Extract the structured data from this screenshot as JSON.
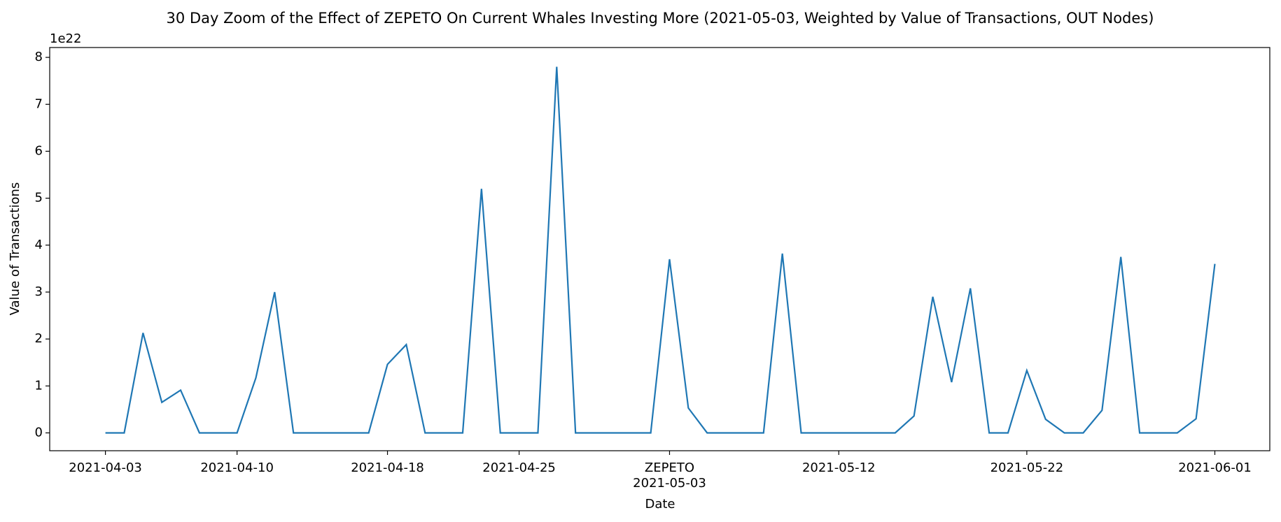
{
  "chart_data": {
    "type": "line",
    "title": "30 Day Zoom of the Effect of ZEPETO On Current Whales Investing More (2021-05-03, Weighted by Value of Transactions, OUT Nodes)",
    "xlabel": "Date",
    "ylabel": "Value of Transactions",
    "y_offset_label": "1e22",
    "annotation": {
      "text": "ZEPETO",
      "x": "2021-05-03"
    },
    "x": [
      "2021-04-03",
      "2021-04-04",
      "2021-04-05",
      "2021-04-06",
      "2021-04-07",
      "2021-04-08",
      "2021-04-09",
      "2021-04-10",
      "2021-04-11",
      "2021-04-12",
      "2021-04-13",
      "2021-04-14",
      "2021-04-15",
      "2021-04-16",
      "2021-04-17",
      "2021-04-18",
      "2021-04-19",
      "2021-04-20",
      "2021-04-21",
      "2021-04-22",
      "2021-04-23",
      "2021-04-24",
      "2021-04-25",
      "2021-04-26",
      "2021-04-27",
      "2021-04-28",
      "2021-04-29",
      "2021-04-30",
      "2021-05-01",
      "2021-05-02",
      "2021-05-03",
      "2021-05-04",
      "2021-05-05",
      "2021-05-06",
      "2021-05-07",
      "2021-05-08",
      "2021-05-09",
      "2021-05-10",
      "2021-05-11",
      "2021-05-12",
      "2021-05-13",
      "2021-05-14",
      "2021-05-15",
      "2021-05-16",
      "2021-05-17",
      "2021-05-18",
      "2021-05-19",
      "2021-05-20",
      "2021-05-21",
      "2021-05-22",
      "2021-05-23",
      "2021-05-24",
      "2021-05-25",
      "2021-05-26",
      "2021-05-27",
      "2021-05-28",
      "2021-05-29",
      "2021-05-30",
      "2021-05-31",
      "2021-06-01"
    ],
    "series": [
      {
        "name": "Value of Transactions",
        "color": "#1f77b4",
        "values": [
          0,
          0,
          2.13,
          0.65,
          0.91,
          0,
          0,
          0,
          1.17,
          3.0,
          0,
          0,
          0,
          0,
          0,
          1.46,
          1.88,
          0,
          0,
          0,
          5.2,
          0,
          0,
          0,
          7.8,
          0,
          0,
          0,
          0,
          0,
          3.7,
          0.53,
          0,
          0,
          0,
          0,
          3.82,
          0,
          0,
          0,
          0,
          0,
          0,
          0.36,
          2.9,
          1.08,
          3.08,
          0,
          0,
          1.33,
          0.29,
          0,
          0,
          0.48,
          3.75,
          0,
          0,
          0,
          0.3,
          3.6
        ]
      }
    ],
    "xticks": [
      "2021-04-03",
      "2021-04-10",
      "2021-04-18",
      "2021-04-25",
      "2021-05-03",
      "2021-05-12",
      "2021-05-22",
      "2021-06-01"
    ],
    "ylim": [
      -0.38,
      8.21
    ],
    "yticks": [
      0,
      1,
      2,
      3,
      4,
      5,
      6,
      7,
      8
    ]
  }
}
